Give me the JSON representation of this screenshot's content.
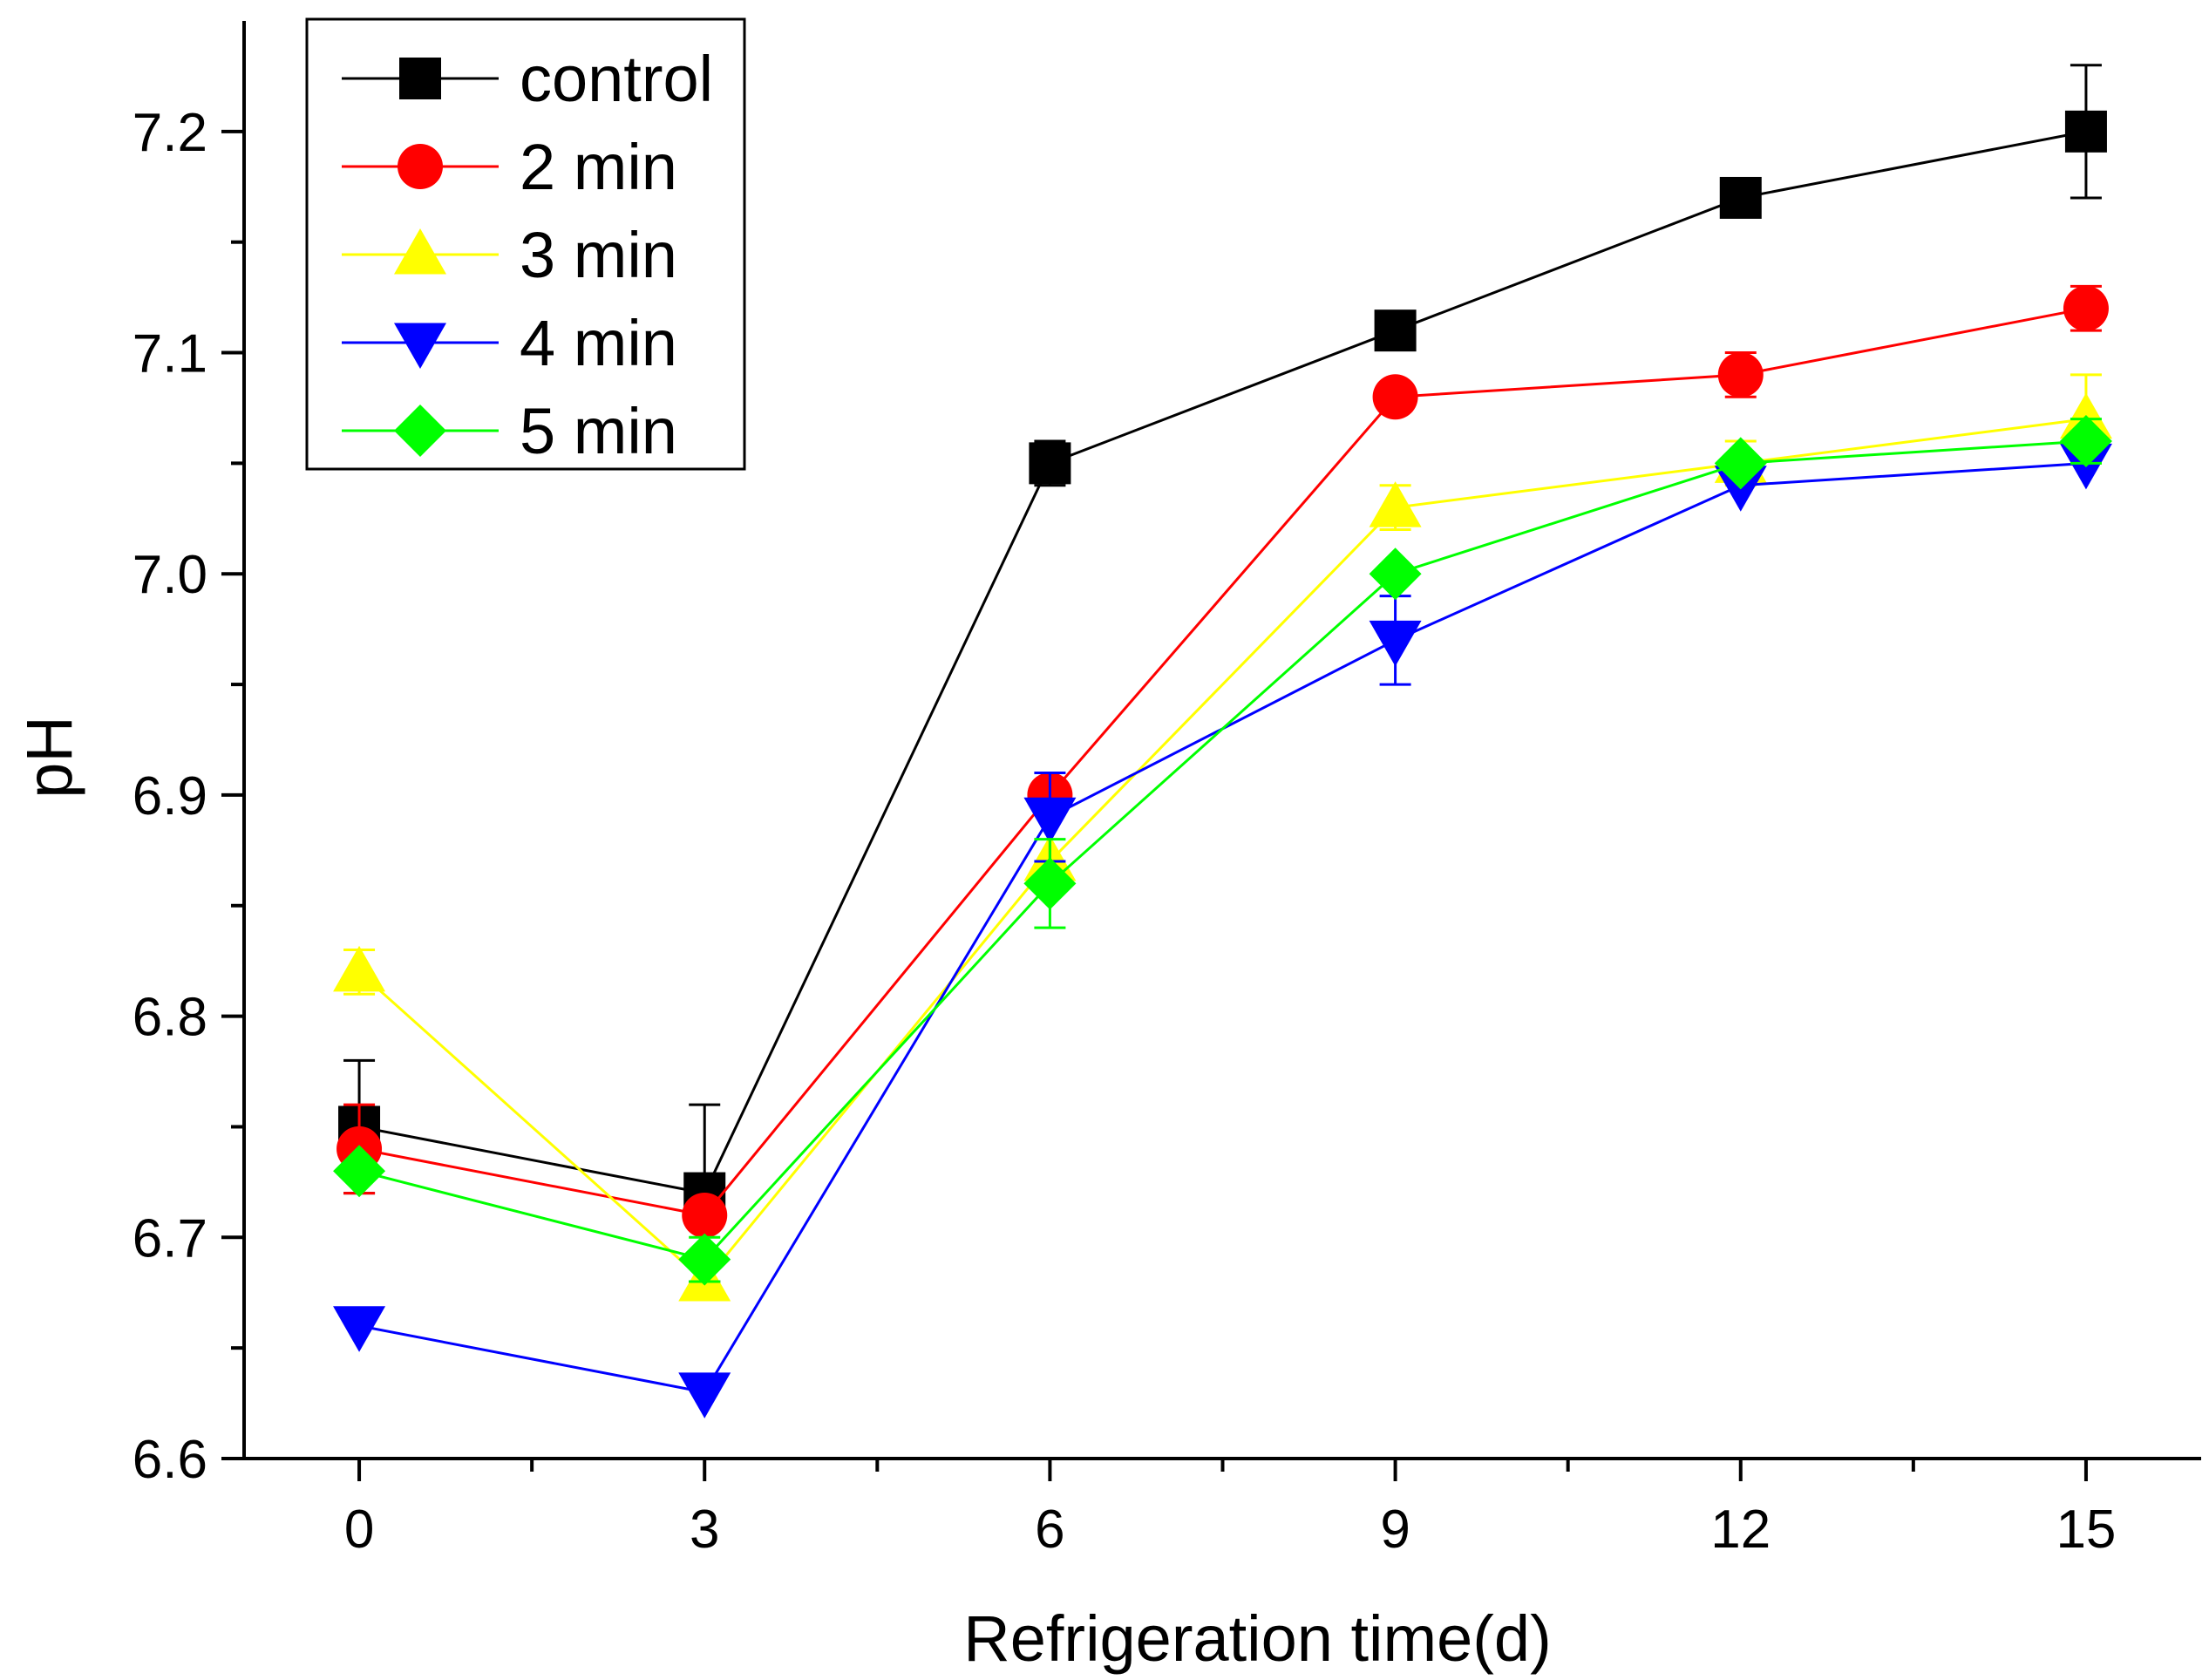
{
  "chart_data": {
    "type": "line",
    "title": "",
    "xlabel": "Refrigeration time(d)",
    "ylabel": "pH",
    "x": [
      0,
      3,
      6,
      9,
      12,
      15
    ],
    "xlim": [
      -1,
      16
    ],
    "ylim": [
      6.6,
      7.25
    ],
    "xticks": [
      "0",
      "3",
      "6",
      "9",
      "12",
      "15"
    ],
    "yticks": [
      "6.6",
      "6.7",
      "6.8",
      "6.9",
      "7.0",
      "7.1",
      "7.2"
    ],
    "grid": false,
    "legend_position": "top-left",
    "series": [
      {
        "name": "control",
        "color": "#000000",
        "marker": "square",
        "values": [
          6.75,
          6.72,
          7.05,
          7.11,
          7.17,
          7.2
        ],
        "errors": [
          0.03,
          0.04,
          0.01,
          0.0,
          0.0,
          0.03
        ]
      },
      {
        "name": "2 min",
        "color": "#ff0000",
        "marker": "circle",
        "values": [
          6.74,
          6.71,
          6.9,
          7.08,
          7.09,
          7.12
        ],
        "errors": [
          0.02,
          0.0,
          0.0,
          0.0,
          0.01,
          0.01
        ]
      },
      {
        "name": "3 min",
        "color": "#ffff00",
        "marker": "triangle-up",
        "values": [
          6.82,
          6.68,
          6.87,
          7.03,
          7.05,
          7.07
        ],
        "errors": [
          0.01,
          0.0,
          0.0,
          0.01,
          0.01,
          0.02
        ]
      },
      {
        "name": "4 min",
        "color": "#0000ff",
        "marker": "triangle-down",
        "values": [
          6.66,
          6.63,
          6.89,
          6.97,
          7.04,
          7.05
        ],
        "errors": [
          0.0,
          0.0,
          0.02,
          0.02,
          0.0,
          0.0
        ]
      },
      {
        "name": "5 min",
        "color": "#00ff00",
        "marker": "diamond",
        "values": [
          6.73,
          6.69,
          6.86,
          7.0,
          7.05,
          7.06
        ],
        "errors": [
          0.0,
          0.01,
          0.02,
          0.0,
          0.0,
          0.01
        ]
      }
    ]
  }
}
